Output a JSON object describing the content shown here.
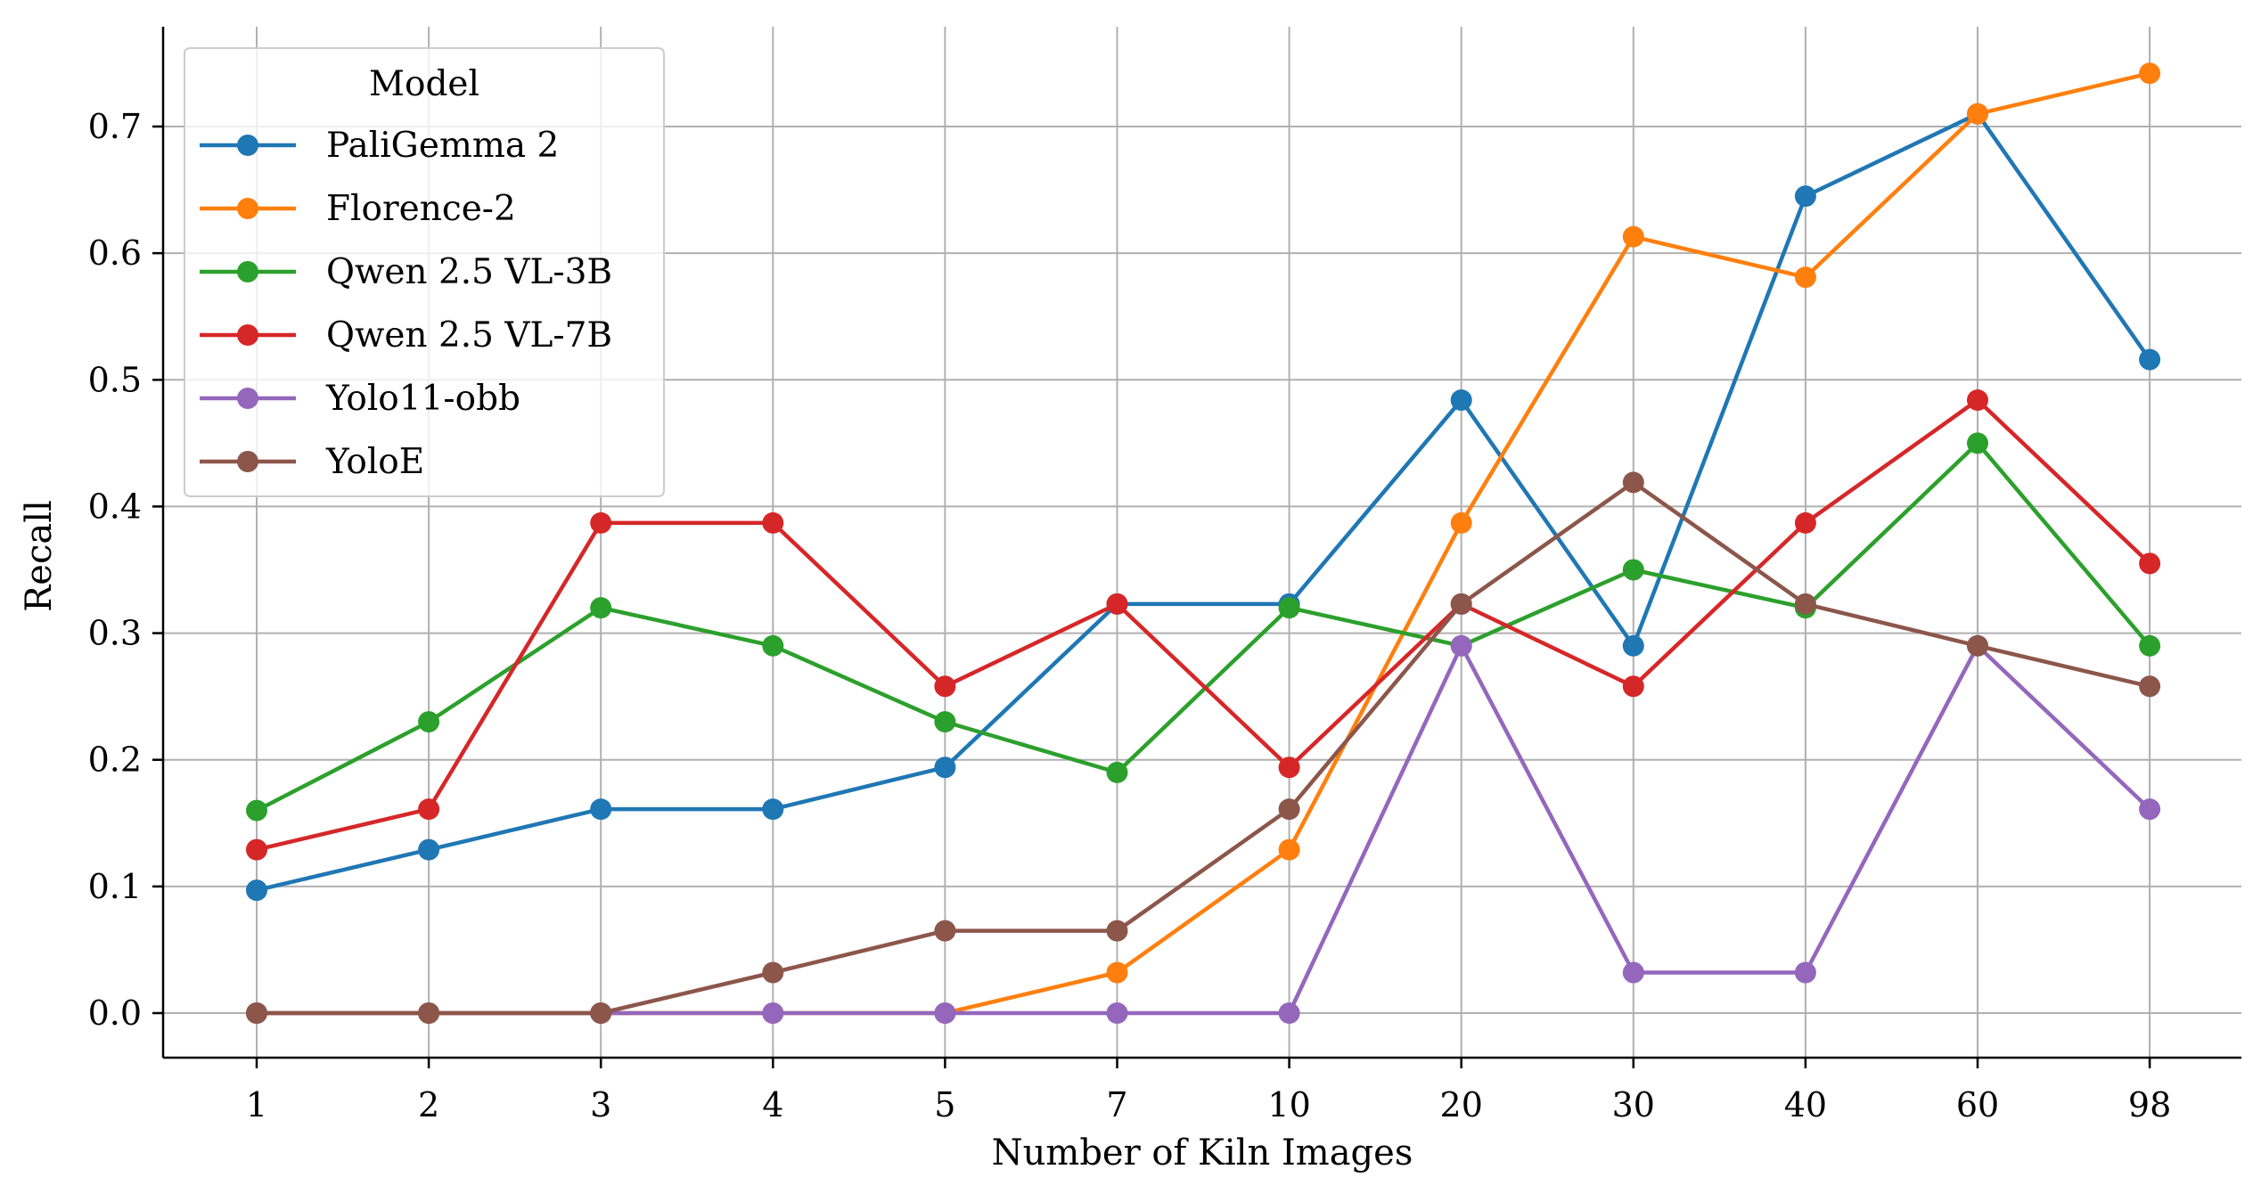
{
  "chart_data": {
    "type": "line",
    "xlabel": "Number of Kiln Images",
    "ylabel": "Recall",
    "categories": [
      "1",
      "2",
      "3",
      "4",
      "5",
      "7",
      "10",
      "20",
      "30",
      "40",
      "60",
      "98"
    ],
    "y_ticks": [
      "0.0",
      "0.1",
      "0.2",
      "0.3",
      "0.4",
      "0.5",
      "0.6",
      "0.7"
    ],
    "ylim": [
      -0.038,
      0.78
    ],
    "grid": true,
    "legend": {
      "title": "Model",
      "placement": "top-left"
    },
    "series": [
      {
        "name": "PaliGemma 2",
        "color": "#1f77b4",
        "values": [
          0.097,
          0.129,
          0.161,
          0.161,
          0.194,
          0.323,
          0.323,
          0.484,
          0.29,
          0.645,
          0.71,
          0.516
        ]
      },
      {
        "name": "Florence-2",
        "color": "#ff7f0e",
        "values": [
          0.0,
          0.0,
          0.0,
          0.0,
          0.0,
          0.032,
          0.129,
          0.387,
          0.613,
          0.581,
          0.71,
          0.742
        ]
      },
      {
        "name": "Qwen 2.5 VL-3B",
        "color": "#2ca02c",
        "values": [
          0.16,
          0.23,
          0.32,
          0.29,
          0.23,
          0.19,
          0.32,
          0.29,
          0.35,
          0.32,
          0.45,
          0.29
        ]
      },
      {
        "name": "Qwen 2.5 VL-7B",
        "color": "#d62728",
        "values": [
          0.129,
          0.161,
          0.387,
          0.387,
          0.258,
          0.323,
          0.194,
          0.323,
          0.258,
          0.387,
          0.484,
          0.355
        ]
      },
      {
        "name": "Yolo11-obb",
        "color": "#9467bd",
        "values": [
          0.0,
          0.0,
          0.0,
          0.0,
          0.0,
          0.0,
          0.0,
          0.29,
          0.032,
          0.032,
          0.29,
          0.161
        ]
      },
      {
        "name": "YoloE",
        "color": "#8c564b",
        "values": [
          0.0,
          0.0,
          0.0,
          0.032,
          0.065,
          0.065,
          0.161,
          0.323,
          0.419,
          0.323,
          0.29,
          0.258
        ]
      }
    ]
  }
}
